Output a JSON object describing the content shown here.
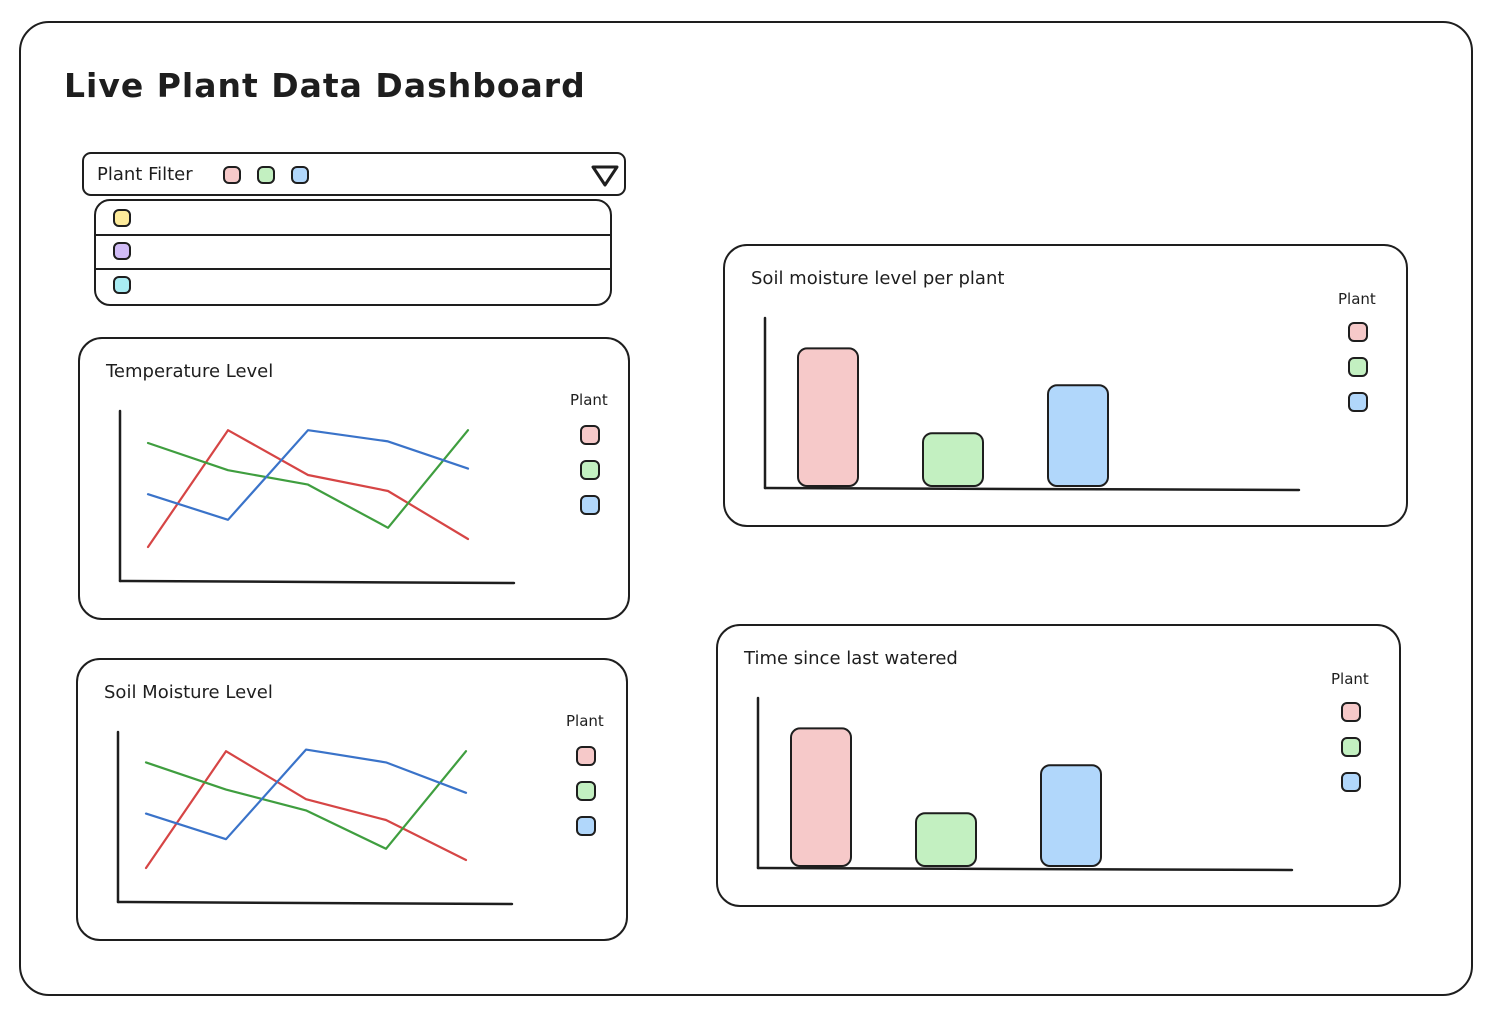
{
  "dashboard": {
    "title": "Live Plant Data Dashboard"
  },
  "colors": {
    "red": "#f6c9c9",
    "green": "#c3f0c1",
    "blue": "#b1d7fb",
    "yellow": "#fdeb9b",
    "purple": "#d1bcf6",
    "cyan": "#a9ecf3",
    "line_red": "#d64545",
    "line_green": "#3f9e3f",
    "line_blue": "#3a73c9"
  },
  "filter": {
    "label": "Plant Filter",
    "selected": [
      "red",
      "green",
      "blue"
    ],
    "options": [
      "yellow",
      "purple",
      "cyan"
    ],
    "toggle_icon": "triangle-down-icon"
  },
  "charts": {
    "temperature": {
      "title": "Temperature Level",
      "legend_title": "Plant"
    },
    "soil_line": {
      "title": "Soil Moisture Level",
      "legend_title": "Plant"
    },
    "soil_bar": {
      "title": "Soil moisture level per plant",
      "legend_title": "Plant"
    },
    "watered": {
      "title": "Time since last watered",
      "legend_title": "Plant"
    }
  },
  "chart_data": [
    {
      "type": "line",
      "id": "temperature",
      "title": "Temperature Level",
      "x": [
        0,
        1,
        2,
        3,
        4
      ],
      "ylim": [
        0,
        10
      ],
      "grid": false,
      "legend": "right",
      "series": [
        {
          "color": "red",
          "values": [
            2,
            9.3,
            6.5,
            5.5,
            2.5
          ]
        },
        {
          "color": "green",
          "values": [
            8.5,
            6.8,
            5.9,
            3.2,
            9.3
          ]
        },
        {
          "color": "blue",
          "values": [
            5.3,
            3.7,
            9.3,
            8.6,
            6.9
          ]
        }
      ]
    },
    {
      "type": "line",
      "id": "soil_line",
      "title": "Soil Moisture Level",
      "x": [
        0,
        1,
        2,
        3,
        4
      ],
      "ylim": [
        0,
        10
      ],
      "grid": false,
      "legend": "right",
      "series": [
        {
          "color": "red",
          "values": [
            2,
            9.3,
            6.3,
            5.0,
            2.5
          ]
        },
        {
          "color": "green",
          "values": [
            8.6,
            6.9,
            5.6,
            3.2,
            9.3
          ]
        },
        {
          "color": "blue",
          "values": [
            5.4,
            3.8,
            9.4,
            8.6,
            6.7
          ]
        }
      ]
    },
    {
      "type": "bar",
      "id": "soil_bar",
      "title": "Soil moisture level per plant",
      "categories": [
        "red",
        "green",
        "blue"
      ],
      "values": [
        8.6,
        3.3,
        6.3
      ],
      "ylim": [
        0,
        10
      ],
      "grid": false,
      "legend": "right"
    },
    {
      "type": "bar",
      "id": "watered",
      "title": "Time since last watered",
      "categories": [
        "red",
        "green",
        "blue"
      ],
      "values": [
        8.6,
        3.3,
        6.3
      ],
      "ylim": [
        0,
        10
      ],
      "grid": false,
      "legend": "right"
    }
  ]
}
